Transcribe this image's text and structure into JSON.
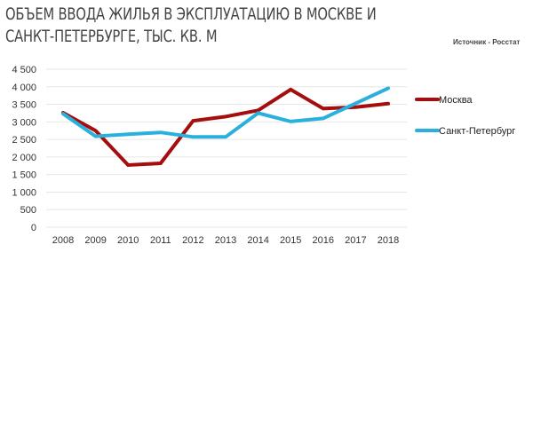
{
  "header": {
    "title_line1": "ОБЪЕМ ВВОДА ЖИЛЬЯ В ЭКСПЛУАТАЦИЮ В МОСКВЕ И",
    "title_line2": "САНКТ-ПЕТЕРБУРГЕ, ТЫС. КВ. М",
    "source": "Источник - Росстат"
  },
  "colors": {
    "moscow": "#a50e0e",
    "spb": "#2ab0dc",
    "grid": "#e6e6e6",
    "text": "#333333"
  },
  "chart_data": {
    "type": "line",
    "title": "ОБЪЕМ ВВОДА ЖИЛЬЯ В ЭКСПЛУАТАЦИЮ В МОСКВЕ И САНКТ-ПЕТЕРБУРГЕ, ТЫС. КВ. М",
    "subtitle": "Источник - Росстат",
    "xlabel": "",
    "ylabel": "",
    "categories": [
      "2008",
      "2009",
      "2010",
      "2011",
      "2012",
      "2013",
      "2014",
      "2015",
      "2016",
      "2017",
      "2018"
    ],
    "series": [
      {
        "name": "Москва",
        "color": "#a50e0e",
        "values": [
          3260,
          2750,
          1770,
          1820,
          3030,
          3150,
          3330,
          3920,
          3380,
          3420,
          3520
        ]
      },
      {
        "name": "Санкт-Петербург",
        "color": "#2ab0dc",
        "values": [
          3230,
          2590,
          2650,
          2700,
          2570,
          2570,
          3250,
          3010,
          3100,
          3530,
          3960
        ]
      }
    ],
    "ylim": [
      0,
      4500
    ],
    "yticks": [
      0,
      500,
      1000,
      1500,
      2000,
      2500,
      3000,
      3500,
      4000,
      4500
    ],
    "ytick_labels": [
      "0",
      "500",
      "1 000",
      "1 500",
      "2 000",
      "2 500",
      "3 000",
      "3 500",
      "4 000",
      "4 500"
    ],
    "grid": true,
    "legend_position": "right"
  }
}
